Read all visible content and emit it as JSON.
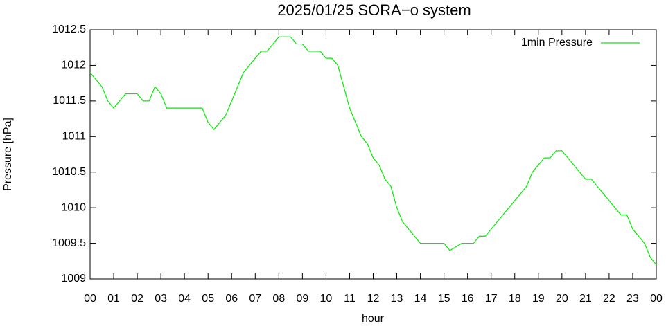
{
  "chart_data": {
    "type": "line",
    "title": "2025/01/25 SORA−o system",
    "x_label": "hour",
    "y_label": "Pressure [hPa]",
    "xlim": [
      0,
      24
    ],
    "xticks": [
      {
        "value": 0,
        "label": "00"
      },
      {
        "value": 1,
        "label": "01"
      },
      {
        "value": 2,
        "label": "02"
      },
      {
        "value": 3,
        "label": "03"
      },
      {
        "value": 4,
        "label": "04"
      },
      {
        "value": 5,
        "label": "05"
      },
      {
        "value": 6,
        "label": "06"
      },
      {
        "value": 7,
        "label": "07"
      },
      {
        "value": 8,
        "label": "08"
      },
      {
        "value": 9,
        "label": "09"
      },
      {
        "value": 10,
        "label": "10"
      },
      {
        "value": 11,
        "label": "11"
      },
      {
        "value": 12,
        "label": "12"
      },
      {
        "value": 13,
        "label": "13"
      },
      {
        "value": 14,
        "label": "14"
      },
      {
        "value": 15,
        "label": "15"
      },
      {
        "value": 16,
        "label": "16"
      },
      {
        "value": 17,
        "label": "17"
      },
      {
        "value": 18,
        "label": "18"
      },
      {
        "value": 19,
        "label": "19"
      },
      {
        "value": 20,
        "label": "20"
      },
      {
        "value": 21,
        "label": "21"
      },
      {
        "value": 22,
        "label": "22"
      },
      {
        "value": 23,
        "label": "23"
      },
      {
        "value": 24,
        "label": "00"
      }
    ],
    "ylim": [
      1009,
      1012.5
    ],
    "yticks": [
      1009,
      1009.5,
      1010,
      1010.5,
      1011,
      1011.5,
      1012,
      1012.5
    ],
    "grid": false,
    "legend": "top-right",
    "x": [
      0,
      0.25,
      0.5,
      0.75,
      1,
      1.25,
      1.5,
      1.75,
      2,
      2.25,
      2.5,
      2.75,
      3,
      3.25,
      3.5,
      3.75,
      4,
      4.25,
      4.5,
      4.75,
      5,
      5.25,
      5.5,
      5.75,
      6,
      6.25,
      6.5,
      6.75,
      7,
      7.25,
      7.5,
      7.75,
      8,
      8.25,
      8.5,
      8.75,
      9,
      9.25,
      9.5,
      9.75,
      10,
      10.25,
      10.5,
      10.75,
      11,
      11.25,
      11.5,
      11.75,
      12,
      12.25,
      12.5,
      12.75,
      13,
      13.25,
      13.5,
      13.75,
      14,
      14.25,
      14.5,
      14.75,
      15,
      15.25,
      15.5,
      15.75,
      16,
      16.25,
      16.5,
      16.75,
      17,
      17.25,
      17.5,
      17.75,
      18,
      18.25,
      18.5,
      18.75,
      19,
      19.25,
      19.5,
      19.75,
      20,
      20.25,
      20.5,
      20.75,
      21,
      21.25,
      21.5,
      21.75,
      22,
      22.25,
      22.5,
      22.75,
      23,
      23.25,
      23.5,
      23.75,
      24
    ],
    "series": [
      {
        "name": "1min Pressure",
        "color": "#00ee00",
        "values": [
          1011.9,
          1011.8,
          1011.7,
          1011.5,
          1011.4,
          1011.5,
          1011.6,
          1011.6,
          1011.6,
          1011.5,
          1011.5,
          1011.7,
          1011.6,
          1011.4,
          1011.4,
          1011.4,
          1011.4,
          1011.4,
          1011.4,
          1011.4,
          1011.2,
          1011.1,
          1011.2,
          1011.3,
          1011.5,
          1011.7,
          1011.9,
          1012.0,
          1012.1,
          1012.2,
          1012.2,
          1012.3,
          1012.4,
          1012.4,
          1012.4,
          1012.3,
          1012.3,
          1012.2,
          1012.2,
          1012.2,
          1012.1,
          1012.1,
          1012.0,
          1011.7,
          1011.4,
          1011.2,
          1011.0,
          1010.9,
          1010.7,
          1010.6,
          1010.4,
          1010.3,
          1010.0,
          1009.8,
          1009.7,
          1009.6,
          1009.5,
          1009.5,
          1009.5,
          1009.5,
          1009.5,
          1009.4,
          1009.45,
          1009.5,
          1009.5,
          1009.5,
          1009.6,
          1009.6,
          1009.7,
          1009.8,
          1009.9,
          1010.0,
          1010.1,
          1010.2,
          1010.3,
          1010.5,
          1010.6,
          1010.7,
          1010.7,
          1010.8,
          1010.8,
          1010.7,
          1010.6,
          1010.5,
          1010.4,
          1010.4,
          1010.3,
          1010.2,
          1010.1,
          1010.0,
          1009.9,
          1009.9,
          1009.7,
          1009.6,
          1009.5,
          1009.3,
          1009.2
        ]
      }
    ]
  }
}
